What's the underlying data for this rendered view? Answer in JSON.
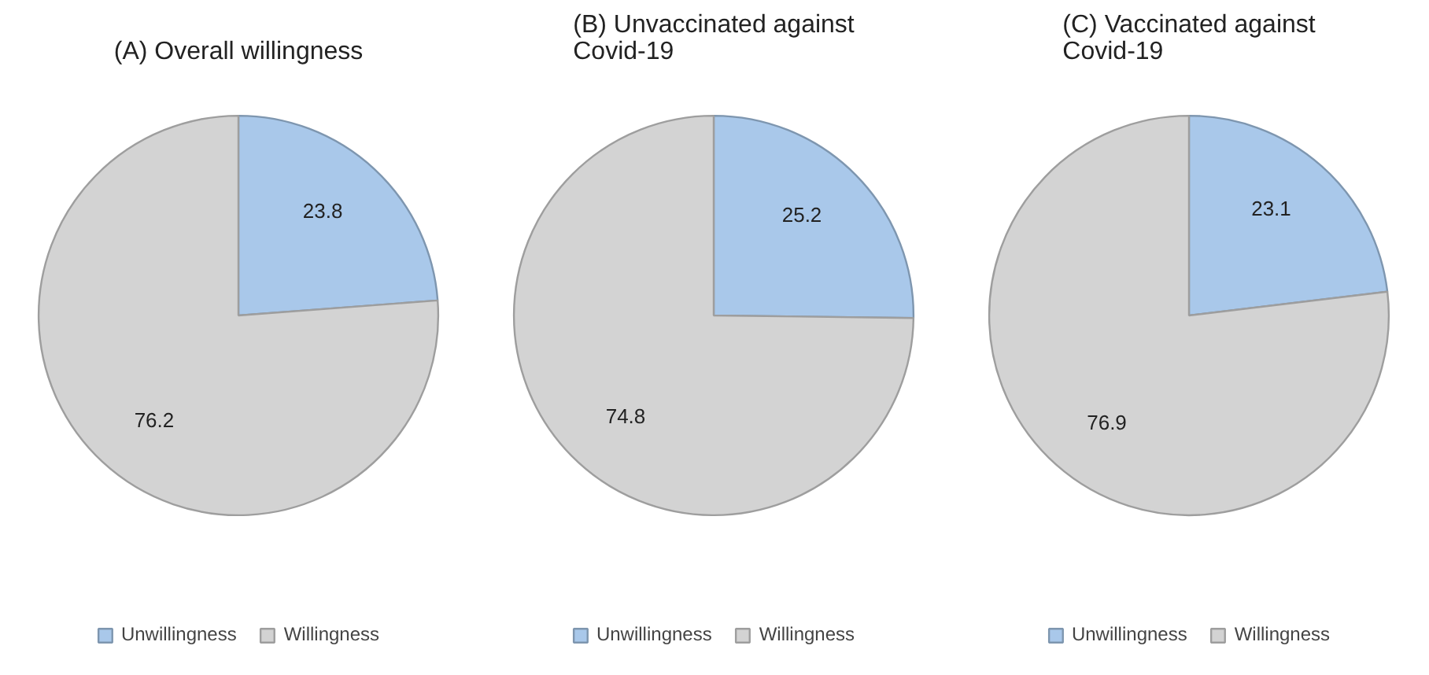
{
  "chart_data": [
    {
      "type": "pie",
      "title": "(A) Overall willingness",
      "categories": [
        "Unwillingness",
        "Willingness"
      ],
      "values": [
        23.8,
        76.2
      ],
      "colors": [
        "#a9c8ea",
        "#d3d3d3"
      ],
      "data_labels": true,
      "legend": "bottom"
    },
    {
      "type": "pie",
      "title": "(B) Unvaccinated against Covid-19",
      "categories": [
        "Unwillingness",
        "Willingness"
      ],
      "values": [
        25.2,
        74.8
      ],
      "colors": [
        "#a9c8ea",
        "#d3d3d3"
      ],
      "data_labels": true,
      "legend": "bottom"
    },
    {
      "type": "pie",
      "title": "(C) Vaccinated against Covid-19",
      "categories": [
        "Unwillingness",
        "Willingness"
      ],
      "values": [
        23.1,
        76.9
      ],
      "colors": [
        "#a9c8ea",
        "#d3d3d3"
      ],
      "data_labels": true,
      "legend": "bottom"
    }
  ]
}
